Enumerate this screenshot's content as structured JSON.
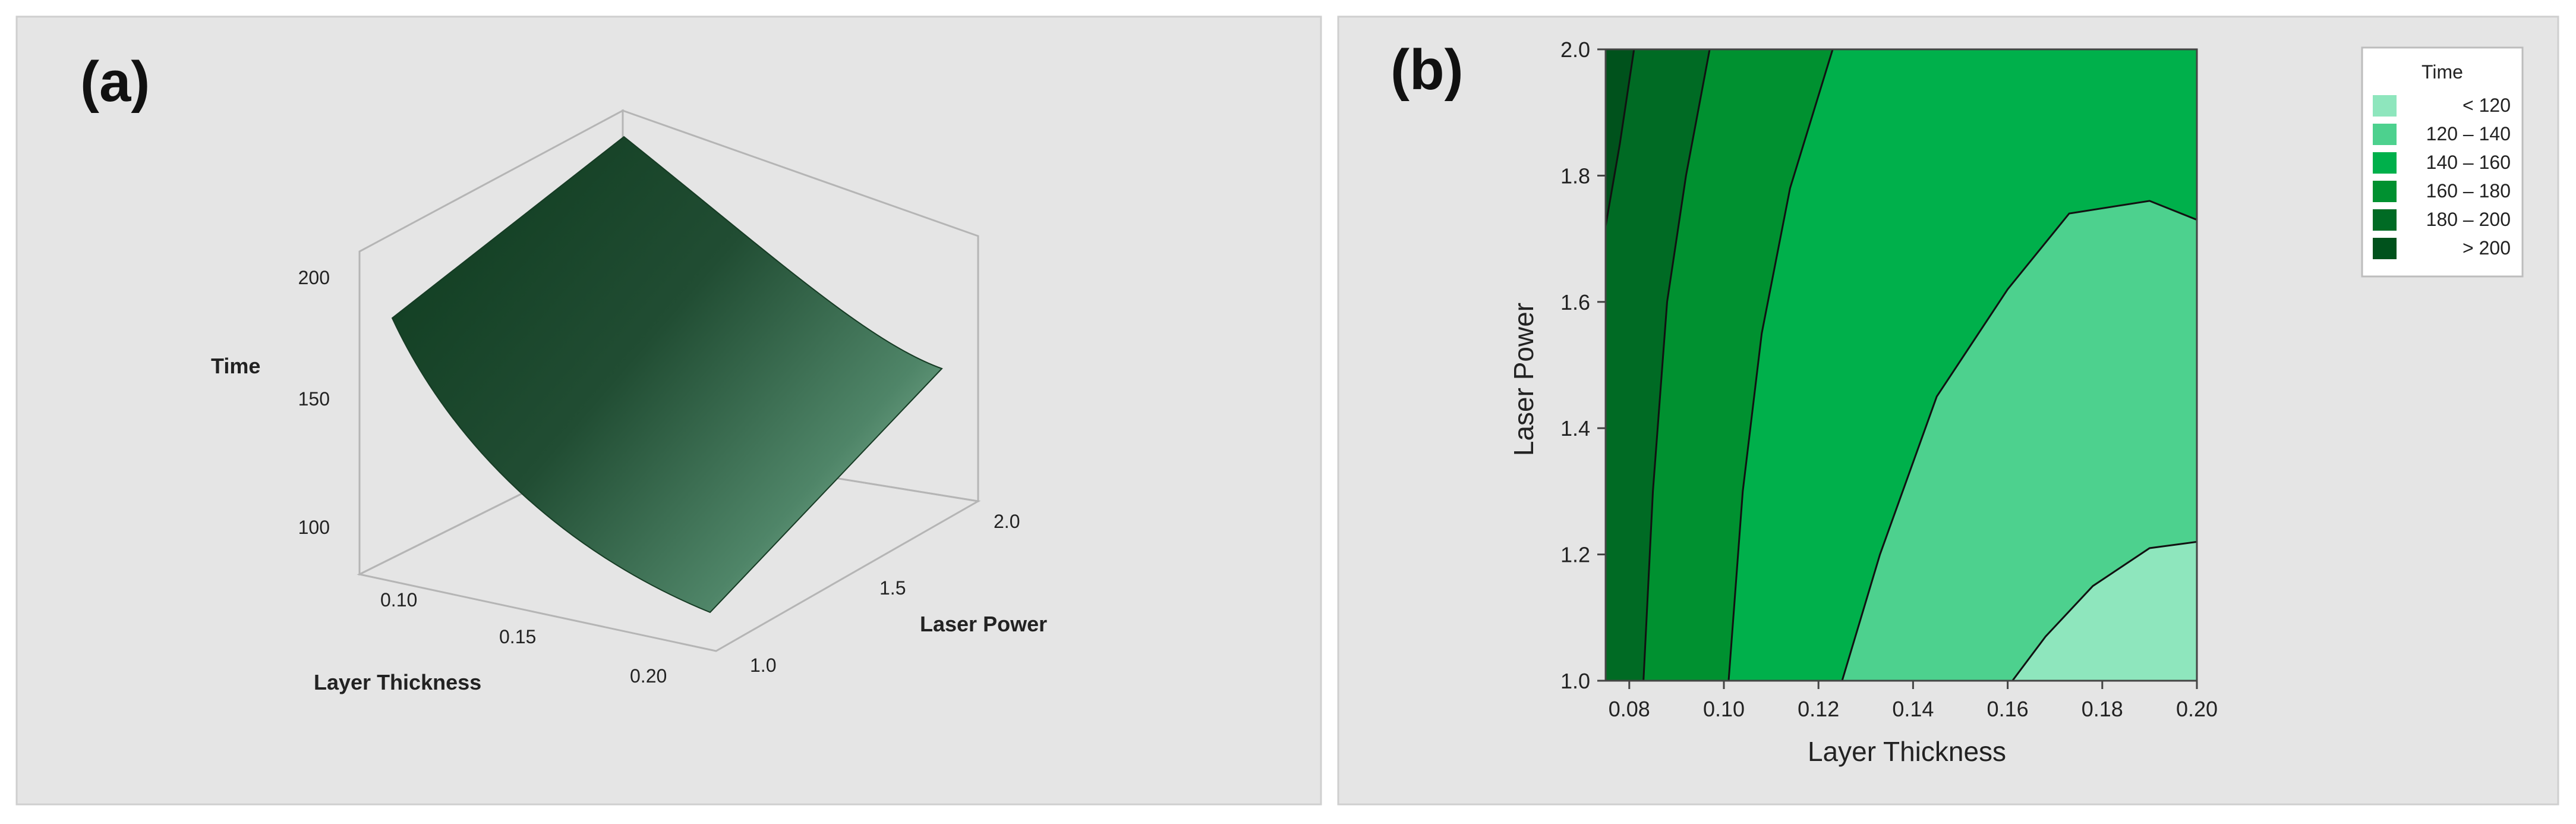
{
  "panels": {
    "a": {
      "label": "(a)",
      "zlabel": "Time",
      "xlabel": "Layer Thickness",
      "ylabel": "Laser Power",
      "zticks": [
        "100",
        "150",
        "200"
      ],
      "xticks": [
        "0.10",
        "0.15",
        "0.20"
      ],
      "yticks": [
        "1.0",
        "1.5",
        "2.0"
      ]
    },
    "b": {
      "label": "(b)",
      "xlabel": "Layer Thickness",
      "ylabel": "Laser Power",
      "xticks": [
        "0.08",
        "0.10",
        "0.12",
        "0.14",
        "0.16",
        "0.18",
        "0.20"
      ],
      "yticks": [
        "1.0",
        "1.2",
        "1.4",
        "1.6",
        "1.8",
        "2.0"
      ],
      "legend": {
        "title": "Time",
        "entries": [
          {
            "label": "< 120",
            "color": "#8ee6bd"
          },
          {
            "label": "120 – 140",
            "color": "#4dd18e"
          },
          {
            "label": "140 – 160",
            "color": "#00b04b"
          },
          {
            "label": "160 – 180",
            "color": "#009130"
          },
          {
            "label": "180 – 200",
            "color": "#006b24"
          },
          {
            "label": "> 200",
            "color": "#00521c"
          }
        ]
      }
    }
  },
  "chart_data": [
    {
      "type": "surface",
      "panel": "(a)",
      "xlabel": "Layer Thickness",
      "ylabel": "Laser Power",
      "zlabel": "Time",
      "xlim": [
        0.075,
        0.2
      ],
      "ylim": [
        1.0,
        2.0
      ],
      "zlim": [
        100,
        210
      ],
      "surface_color": "#1e4a2e",
      "corners": [
        {
          "x": 0.075,
          "y": 1.0,
          "z": 183
        },
        {
          "x": 0.075,
          "y": 2.0,
          "z": 205
        },
        {
          "x": 0.2,
          "y": 1.0,
          "z": 107
        },
        {
          "x": 0.2,
          "y": 2.0,
          "z": 145
        }
      ]
    },
    {
      "type": "heatmap",
      "panel": "(b)",
      "xlabel": "Layer Thickness",
      "ylabel": "Laser Power",
      "xlim": [
        0.075,
        0.2
      ],
      "ylim": [
        1.0,
        2.0
      ],
      "legend_title": "Time",
      "levels": [
        120,
        140,
        160,
        180,
        200
      ],
      "contours": [
        {
          "level": 200,
          "points": [
            [
              0.075,
              1.72
            ],
            [
              0.078,
              1.85
            ],
            [
              0.081,
              2.0
            ]
          ]
        },
        {
          "level": 180,
          "points": [
            [
              0.083,
              1.0
            ],
            [
              0.085,
              1.3
            ],
            [
              0.088,
              1.6
            ],
            [
              0.092,
              1.8
            ],
            [
              0.097,
              2.0
            ]
          ]
        },
        {
          "level": 160,
          "points": [
            [
              0.101,
              1.0
            ],
            [
              0.104,
              1.3
            ],
            [
              0.108,
              1.55
            ],
            [
              0.114,
              1.78
            ],
            [
              0.123,
              2.0
            ]
          ]
        },
        {
          "level": 140,
          "points": [
            [
              0.125,
              1.0
            ],
            [
              0.133,
              1.2
            ],
            [
              0.145,
              1.45
            ],
            [
              0.16,
              1.62
            ],
            [
              0.173,
              1.74
            ],
            [
              0.19,
              1.76
            ],
            [
              0.2,
              1.73
            ]
          ]
        },
        {
          "level": 120,
          "points": [
            [
              0.161,
              1.0
            ],
            [
              0.168,
              1.07
            ],
            [
              0.178,
              1.15
            ],
            [
              0.19,
              1.21
            ],
            [
              0.2,
              1.22
            ]
          ]
        }
      ]
    }
  ]
}
